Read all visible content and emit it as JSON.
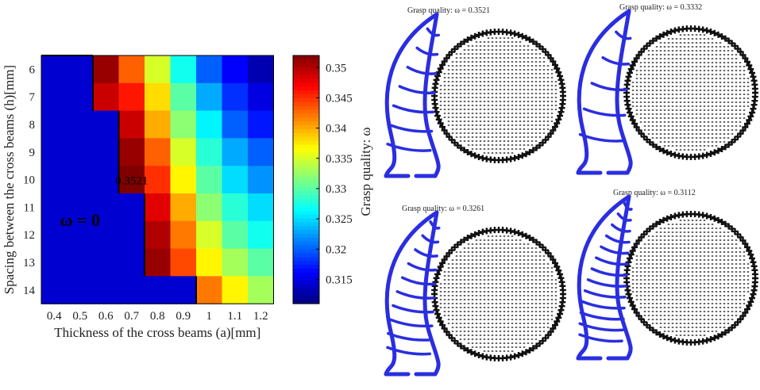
{
  "chart_data": {
    "type": "heatmap",
    "xlabel": "Thickness of the cross beams (a)[mm]",
    "ylabel": "Spacing between the cross beams (h)[mm]",
    "x": [
      0.4,
      0.5,
      0.6,
      0.7,
      0.8,
      0.9,
      1.0,
      1.1,
      1.2
    ],
    "x_tick_labels": [
      "0.4",
      "0.5",
      "0.6",
      "0.7",
      "0.8",
      "0.9",
      "1",
      "1.1",
      "1.2"
    ],
    "y": [
      6,
      7,
      8,
      9,
      10,
      11,
      12,
      13,
      14
    ],
    "y_tick_labels": [
      "6",
      "7",
      "8",
      "9",
      "10",
      "11",
      "12",
      "13",
      "14"
    ],
    "values": [
      [
        0,
        0,
        0.351,
        0.343,
        0.335,
        0.327,
        0.32,
        0.316,
        0.313
      ],
      [
        0,
        0,
        0.349,
        0.346,
        0.338,
        0.33,
        0.323,
        0.318,
        0.315
      ],
      [
        0,
        0,
        0,
        0.349,
        0.34,
        0.332,
        0.326,
        0.32,
        0.317
      ],
      [
        0,
        0,
        0,
        0.351,
        0.343,
        0.335,
        0.328,
        0.323,
        0.32
      ],
      [
        0,
        0,
        0,
        0.3521,
        0.345,
        0.337,
        0.33,
        0.325,
        0.322
      ],
      [
        0,
        0,
        0,
        0,
        0.348,
        0.34,
        0.332,
        0.328,
        0.325
      ],
      [
        0,
        0,
        0,
        0,
        0.35,
        0.342,
        0.335,
        0.33,
        0.327
      ],
      [
        0,
        0,
        0,
        0,
        0.351,
        0.344,
        0.337,
        0.333,
        0.33
      ],
      [
        0,
        0,
        0,
        0,
        0,
        0,
        0.342,
        0.337,
        0.333
      ]
    ],
    "annotations": [
      {
        "text": "0.3521",
        "x": 0.7,
        "y": 10
      },
      {
        "text": "ω = 0",
        "x": 0.5,
        "y": 11.5
      }
    ],
    "colorbar": {
      "label": "Grasp quality: ω",
      "range": [
        0.311,
        0.352
      ],
      "ticks": [
        "0.315",
        "0.32",
        "0.325",
        "0.33",
        "0.335",
        "0.34",
        "0.345",
        "0.35"
      ]
    },
    "colormap": "jet",
    "region_border_color": "#000000"
  },
  "panels": [
    {
      "title": "Grasp quality: ω = 0.3521",
      "beams": 7
    },
    {
      "title": "Grasp quality: ω = 0.3332",
      "beams": 5
    },
    {
      "title": "Grasp quality: ω = 0.3261",
      "beams": 10
    },
    {
      "title": "Grasp quality: ω = 0.3112",
      "beams": 13
    }
  ],
  "colors": {
    "finger": "#2a2ee0",
    "object": "#111111"
  }
}
